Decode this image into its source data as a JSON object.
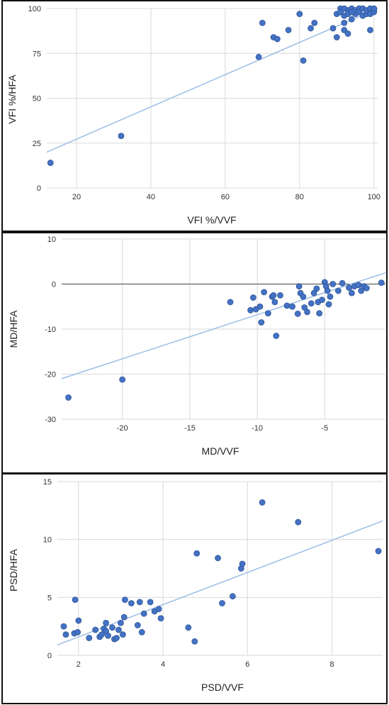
{
  "colors": {
    "point": "#4472c4",
    "point_stroke": "#2f5597",
    "trend": "#9dbde6",
    "grid": "#d9d9d9",
    "zero": "#444444"
  },
  "chart_data": [
    {
      "type": "scatter",
      "xlabel": "VFI %/VVF",
      "ylabel": "VFI %/HFA",
      "xlim": [
        12,
        101
      ],
      "ylim": [
        0,
        100
      ],
      "xticks": [
        20,
        40,
        60,
        80,
        100
      ],
      "yticks": [
        0,
        25,
        50,
        75,
        100
      ],
      "grid": true,
      "trendline": {
        "x": [
          12,
          101
        ],
        "y": [
          20,
          100
        ]
      },
      "points": [
        [
          13,
          14
        ],
        [
          32,
          29
        ],
        [
          69,
          73
        ],
        [
          70,
          92
        ],
        [
          73,
          84
        ],
        [
          74,
          83
        ],
        [
          77,
          88
        ],
        [
          80,
          97
        ],
        [
          81,
          71
        ],
        [
          83,
          89
        ],
        [
          84,
          92
        ],
        [
          89,
          89
        ],
        [
          90,
          84
        ],
        [
          90,
          97
        ],
        [
          91,
          100
        ],
        [
          92,
          92
        ],
        [
          92,
          96
        ],
        [
          92,
          88
        ],
        [
          93,
          86
        ],
        [
          93,
          99
        ],
        [
          93,
          97
        ],
        [
          94,
          94
        ],
        [
          94,
          100
        ],
        [
          95,
          97
        ],
        [
          95,
          99
        ],
        [
          96,
          100
        ],
        [
          96,
          98
        ],
        [
          97,
          96
        ],
        [
          97,
          100
        ],
        [
          98,
          97
        ],
        [
          98,
          99
        ],
        [
          99,
          88
        ],
        [
          99,
          100
        ],
        [
          99,
          97
        ],
        [
          100,
          99
        ],
        [
          100,
          98
        ],
        [
          100,
          100
        ],
        [
          91,
          98
        ],
        [
          92,
          100
        ],
        [
          94,
          98
        ]
      ]
    },
    {
      "type": "scatter",
      "xlabel": "MD/VVF",
      "ylabel": "MD/HFA",
      "xlim": [
        -24.5,
        -0.5
      ],
      "ylim": [
        -30,
        10
      ],
      "xticks": [
        -20,
        -15,
        -10,
        -5
      ],
      "yticks": [
        -30,
        -20,
        -10,
        0,
        10
      ],
      "grid": true,
      "trendline": {
        "x": [
          -24.5,
          -0.5
        ],
        "y": [
          -21,
          2.5
        ]
      },
      "points": [
        [
          -24,
          -25.2
        ],
        [
          -20,
          -21.2
        ],
        [
          -12,
          -4
        ],
        [
          -10.5,
          -5.8
        ],
        [
          -10.3,
          -3
        ],
        [
          -10.1,
          -5.6
        ],
        [
          -9.8,
          -5
        ],
        [
          -9.7,
          -8.5
        ],
        [
          -9.5,
          -1.8
        ],
        [
          -9.2,
          -6.5
        ],
        [
          -8.9,
          -2.8
        ],
        [
          -8.8,
          -2.5
        ],
        [
          -8.7,
          -4
        ],
        [
          -8.6,
          -11.5
        ],
        [
          -8.3,
          -2.5
        ],
        [
          -7.8,
          -4.8
        ],
        [
          -7.4,
          -5
        ],
        [
          -7,
          -6.6
        ],
        [
          -6.9,
          -0.5
        ],
        [
          -6.8,
          -2
        ],
        [
          -6.6,
          -2.8
        ],
        [
          -6.5,
          -5.2
        ],
        [
          -6.3,
          -6.2
        ],
        [
          -6,
          -4.3
        ],
        [
          -5.8,
          -2
        ],
        [
          -5.6,
          -1
        ],
        [
          -5.5,
          -4
        ],
        [
          -5.4,
          -6.5
        ],
        [
          -5.2,
          -3.5
        ],
        [
          -5,
          0.4
        ],
        [
          -4.9,
          -0.5
        ],
        [
          -4.8,
          -1.5
        ],
        [
          -4.7,
          -4.5
        ],
        [
          -4.6,
          -2.8
        ],
        [
          -4.4,
          0
        ],
        [
          -4,
          -1.5
        ],
        [
          -3.7,
          0.2
        ],
        [
          -3.2,
          -0.8
        ],
        [
          -3,
          -2
        ],
        [
          -2.8,
          -0.5
        ],
        [
          -2.5,
          -0.2
        ],
        [
          -2.3,
          -1.5
        ],
        [
          -2.1,
          -0.5
        ],
        [
          -1.9,
          -0.9
        ],
        [
          -0.8,
          0.3
        ]
      ]
    },
    {
      "type": "scatter",
      "xlabel": "PSD/VVF",
      "ylabel": "PSD/HFA",
      "xlim": [
        1.5,
        9.2
      ],
      "ylim": [
        0,
        15
      ],
      "xticks": [
        2,
        4,
        6,
        8
      ],
      "yticks": [
        0,
        5,
        10,
        15
      ],
      "grid": true,
      "trendline": {
        "x": [
          1.5,
          9.2
        ],
        "y": [
          0.9,
          11.6
        ]
      },
      "points": [
        [
          1.65,
          2.5
        ],
        [
          1.7,
          1.8
        ],
        [
          1.9,
          1.9
        ],
        [
          1.92,
          4.8
        ],
        [
          1.98,
          2
        ],
        [
          2,
          3
        ],
        [
          2.25,
          1.5
        ],
        [
          2.4,
          2.2
        ],
        [
          2.5,
          1.6
        ],
        [
          2.55,
          1.8
        ],
        [
          2.6,
          2.3
        ],
        [
          2.65,
          2.1
        ],
        [
          2.65,
          2.8
        ],
        [
          2.7,
          1.7
        ],
        [
          2.8,
          2.4
        ],
        [
          2.85,
          1.4
        ],
        [
          2.9,
          1.5
        ],
        [
          2.95,
          2.2
        ],
        [
          3,
          2.8
        ],
        [
          3.05,
          1.8
        ],
        [
          3.08,
          3.3
        ],
        [
          3.1,
          4.8
        ],
        [
          3.25,
          4.5
        ],
        [
          3.4,
          2.6
        ],
        [
          3.45,
          4.6
        ],
        [
          3.5,
          2
        ],
        [
          3.55,
          3.6
        ],
        [
          3.7,
          4.6
        ],
        [
          3.8,
          3.8
        ],
        [
          3.9,
          4
        ],
        [
          3.95,
          3.2
        ],
        [
          4.6,
          2.4
        ],
        [
          4.75,
          1.2
        ],
        [
          4.8,
          8.8
        ],
        [
          5.3,
          8.4
        ],
        [
          5.4,
          4.5
        ],
        [
          5.65,
          5.1
        ],
        [
          5.85,
          7.5
        ],
        [
          5.88,
          7.9
        ],
        [
          6.35,
          13.2
        ],
        [
          7.2,
          11.5
        ],
        [
          9.1,
          9
        ]
      ]
    }
  ]
}
